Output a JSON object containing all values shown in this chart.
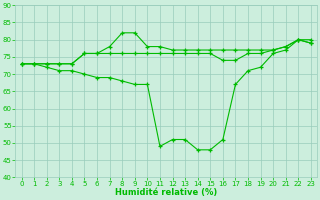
{
  "line1_x": [
    0,
    1,
    2,
    3,
    4,
    5,
    6,
    7,
    8,
    9,
    10,
    11,
    12,
    13,
    14,
    15,
    16,
    17,
    18,
    19,
    20,
    21,
    22,
    23
  ],
  "line1_y": [
    73,
    73,
    73,
    73,
    73,
    76,
    76,
    76,
    76,
    76,
    76,
    76,
    76,
    76,
    76,
    76,
    74,
    74,
    76,
    76,
    77,
    78,
    80,
    80
  ],
  "line2_x": [
    0,
    1,
    2,
    3,
    4,
    5,
    6,
    7,
    8,
    9,
    10,
    11,
    12,
    13,
    14,
    15,
    16,
    17,
    18,
    19,
    20,
    21,
    22,
    23
  ],
  "line2_y": [
    73,
    73,
    73,
    73,
    73,
    76,
    76,
    78,
    82,
    82,
    78,
    78,
    77,
    77,
    77,
    77,
    77,
    77,
    77,
    77,
    77,
    78,
    80,
    79
  ],
  "line3_x": [
    0,
    1,
    2,
    3,
    4,
    5,
    6,
    7,
    8,
    9,
    10,
    11,
    12,
    13,
    14,
    15,
    16,
    17,
    18,
    19,
    20,
    21,
    22,
    23
  ],
  "line3_y": [
    73,
    73,
    72,
    71,
    71,
    70,
    69,
    69,
    68,
    67,
    67,
    49,
    51,
    51,
    48,
    48,
    51,
    67,
    71,
    72,
    76,
    77,
    80,
    79
  ],
  "line_color": "#00bb00",
  "bg_color": "#cceedd",
  "grid_color": "#99ccbb",
  "xlabel": "Humidité relative (%)",
  "ylim": [
    40,
    90
  ],
  "xlim": [
    -0.5,
    23.5
  ],
  "yticks": [
    40,
    45,
    50,
    55,
    60,
    65,
    70,
    75,
    80,
    85,
    90
  ],
  "xticks": [
    0,
    1,
    2,
    3,
    4,
    5,
    6,
    7,
    8,
    9,
    10,
    11,
    12,
    13,
    14,
    15,
    16,
    17,
    18,
    19,
    20,
    21,
    22,
    23
  ],
  "xlabel_fontsize": 6.0,
  "tick_fontsize": 5.0
}
